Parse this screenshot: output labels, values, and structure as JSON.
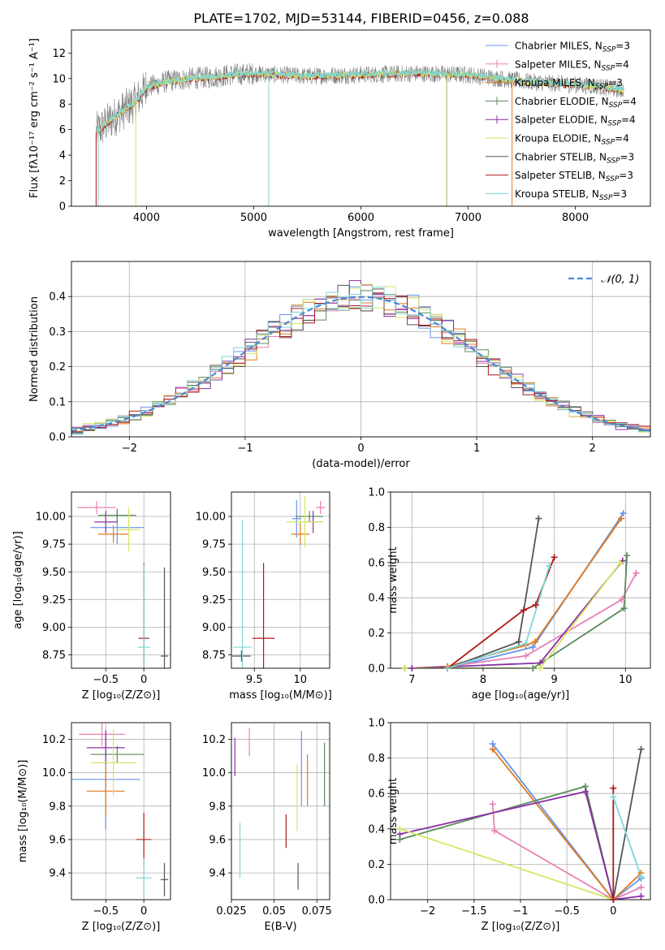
{
  "figure_title": "PLATE=1702, MJD=53144, FIBERID=0456, z=0.088",
  "colors": {
    "chabrier_miles": "#6495ed",
    "salpeter_miles": "#e780b4",
    "kroupa_miles": "#e07a1f",
    "chabrier_elodie": "#5b8a5b",
    "salpeter_elodie": "#8b2fa6",
    "kroupa_elodie": "#d4e660",
    "chabrier_stelib": "#555555",
    "salpeter_stelib": "#b01818",
    "kroupa_stelib": "#7dd6d6",
    "normal_curve": "#4a86d4"
  },
  "chart_data": [
    {
      "id": "spectrum",
      "type": "line",
      "title": "PLATE=1702, MJD=53144, FIBERID=0456, z=0.088",
      "xlabel": "wavelength [Angstrom, rest frame]",
      "ylabel": "Flux [fλ10⁻¹⁷ erg cm⁻² s⁻¹ A⁻¹]",
      "xlim": [
        3300,
        8700
      ],
      "ylim": [
        0,
        13.8
      ],
      "xticks": [
        4000,
        5000,
        6000,
        7000,
        8000
      ],
      "yticks": [
        0,
        2,
        4,
        6,
        8,
        10,
        12
      ],
      "grid": false,
      "legend_position": "top-right",
      "legend": [
        {
          "label": "Chabrier MILES, N_SSP=3",
          "color_key": "chabrier_miles"
        },
        {
          "label": "Salpeter MILES, N_SSP=4",
          "color_key": "salpeter_miles"
        },
        {
          "label": "Kroupa MILES, N_SSP=3",
          "color_key": "kroupa_miles"
        },
        {
          "label": "Chabrier ELODIE, N_SSP=4",
          "color_key": "chabrier_elodie"
        },
        {
          "label": "Salpeter ELODIE, N_SSP=4",
          "color_key": "salpeter_elodie"
        },
        {
          "label": "Kroupa ELODIE, N_SSP=4",
          "color_key": "kroupa_elodie"
        },
        {
          "label": "Chabrier STELIB, N_SSP=3",
          "color_key": "chabrier_stelib"
        },
        {
          "label": "Salpeter STELIB, N_SSP=3",
          "color_key": "salpeter_stelib"
        },
        {
          "label": "Kroupa STELIB, N_SSP=3",
          "color_key": "kroupa_stelib"
        }
      ],
      "continuum": {
        "x": [
          3530,
          3600,
          3700,
          3800,
          3900,
          4000,
          4200,
          4400,
          4600,
          4800,
          5000,
          5200,
          5500,
          6000,
          6500,
          7000,
          7300,
          7500,
          8000,
          8200,
          8450
        ],
        "y": [
          5.8,
          6.3,
          7.0,
          7.6,
          8.2,
          9.3,
          9.8,
          10.0,
          10.1,
          10.3,
          10.4,
          10.3,
          10.2,
          10.3,
          10.4,
          10.3,
          10.0,
          9.8,
          9.5,
          9.4,
          9.1
        ]
      },
      "spikes": [
        {
          "x": 3530,
          "y": 0
        },
        {
          "x": 3550,
          "y": 0
        },
        {
          "x": 3900,
          "y": 0
        },
        {
          "x": 5140,
          "y": 0
        },
        {
          "x": 6800,
          "y": 0
        },
        {
          "x": 7410,
          "y": 0
        }
      ]
    },
    {
      "id": "residuals",
      "type": "line",
      "xlabel": "(data-model)/error",
      "ylabel": "Normed distribution",
      "xlim": [
        -2.5,
        2.5
      ],
      "ylim": [
        0,
        0.5
      ],
      "xticks": [
        -2,
        -1,
        0,
        1,
        2
      ],
      "yticks": [
        0.0,
        0.1,
        0.2,
        0.3,
        0.4
      ],
      "grid": true,
      "legend_position": "top-right",
      "legend": [
        {
          "label": "𝒩(0, 1)",
          "color_key": "normal_curve",
          "style": "dashed"
        }
      ],
      "bin_width": 0.1
    },
    {
      "id": "age_vs_Z",
      "type": "scatter",
      "xlabel": "Z [log₁₀(Z/Z⊙)]",
      "ylabel": "age  [log₁₀(age/yr)]",
      "xlim": [
        -0.95,
        0.35
      ],
      "ylim": [
        8.63,
        10.22
      ],
      "xticks": [
        -0.5,
        0.0
      ],
      "yticks": [
        8.75,
        9.0,
        9.25,
        9.5,
        9.75,
        10.0
      ],
      "grid": true,
      "points": [
        {
          "key": "salpeter_miles",
          "x": -0.62,
          "y": 10.08,
          "xerr": 0.25,
          "yerr": 0.06
        },
        {
          "key": "chabrier_miles",
          "x": -0.35,
          "y": 9.9,
          "xerr": 0.35,
          "yerr": 0.15
        },
        {
          "key": "kroupa_miles",
          "x": -0.4,
          "y": 9.84,
          "xerr": 0.2,
          "yerr": 0.08
        },
        {
          "key": "chabrier_elodie",
          "x": -0.35,
          "y": 10.01,
          "xerr": 0.25,
          "yerr": 0.06
        },
        {
          "key": "salpeter_elodie",
          "x": -0.5,
          "y": 9.95,
          "xerr": 0.15,
          "yerr": 0.1
        },
        {
          "key": "kroupa_elodie",
          "x": -0.2,
          "y": 9.88,
          "xerr": 0.15,
          "yerr": 0.2
        },
        {
          "key": "chabrier_stelib",
          "x": 0.27,
          "y": 8.74,
          "xerr": 0.05,
          "yerr": 0.8
        },
        {
          "key": "salpeter_stelib",
          "x": 0.0,
          "y": 8.9,
          "xerr": 0.07,
          "yerr": 0.68
        },
        {
          "key": "kroupa_stelib",
          "x": 0.0,
          "y": 8.82,
          "xerr": 0.08,
          "yerr": 0.75
        }
      ]
    },
    {
      "id": "age_vs_mass",
      "type": "scatter",
      "xlabel": "mass [log₁₀(M/M⊙)]",
      "ylabel": "",
      "xlim": [
        9.25,
        10.32
      ],
      "ylim": [
        8.63,
        10.22
      ],
      "xticks": [
        9.5,
        10.0
      ],
      "yticks": [
        8.75,
        9.0,
        9.25,
        9.5,
        9.75,
        10.0
      ],
      "grid": true,
      "points": [
        {
          "key": "salpeter_miles",
          "x": 10.22,
          "y": 10.08,
          "xerr": 0.05,
          "yerr": 0.06
        },
        {
          "key": "chabrier_miles",
          "x": 9.96,
          "y": 9.98,
          "xerr": 0.05,
          "yerr": 0.17
        },
        {
          "key": "kroupa_miles",
          "x": 10.0,
          "y": 9.84,
          "xerr": 0.1,
          "yerr": 0.1
        },
        {
          "key": "chabrier_elodie",
          "x": 10.1,
          "y": 10.0,
          "xerr": 0.15,
          "yerr": 0.05
        },
        {
          "key": "salpeter_elodie",
          "x": 10.14,
          "y": 9.95,
          "xerr": 0.1,
          "yerr": 0.1
        },
        {
          "key": "kroupa_elodie",
          "x": 10.05,
          "y": 9.95,
          "xerr": 0.2,
          "yerr": 0.23
        },
        {
          "key": "chabrier_stelib",
          "x": 9.36,
          "y": 8.74,
          "xerr": 0.1,
          "yerr": 0.05
        },
        {
          "key": "salpeter_stelib",
          "x": 9.6,
          "y": 8.9,
          "xerr": 0.12,
          "yerr": 0.68
        },
        {
          "key": "kroupa_stelib",
          "x": 9.37,
          "y": 8.82,
          "xerr": 0.1,
          "yerr": 1.15
        }
      ]
    },
    {
      "id": "weight_vs_age",
      "type": "line",
      "xlabel": "age  [log₁₀(age/yr)]",
      "ylabel": "mass weight",
      "xlim": [
        6.7,
        10.35
      ],
      "ylim": [
        0,
        1.0
      ],
      "xticks": [
        7,
        8,
        9,
        10
      ],
      "yticks": [
        0.0,
        0.2,
        0.4,
        0.6,
        0.8,
        1.0
      ],
      "grid": true,
      "series": [
        {
          "key": "chabrier_miles",
          "x": [
            6.9,
            7.5,
            8.7,
            9.97
          ],
          "y": [
            0.0,
            0.0,
            0.12,
            0.88
          ]
        },
        {
          "key": "salpeter_miles",
          "x": [
            7.0,
            7.5,
            8.6,
            9.95,
            10.15
          ],
          "y": [
            0.0,
            0.01,
            0.07,
            0.39,
            0.54
          ]
        },
        {
          "key": "kroupa_miles",
          "x": [
            7.0,
            7.5,
            8.6,
            8.73,
            9.94
          ],
          "y": [
            0.0,
            0.01,
            0.13,
            0.15,
            0.85
          ]
        },
        {
          "key": "chabrier_elodie",
          "x": [
            6.9,
            8.7,
            9.98,
            10.02
          ],
          "y": [
            0.0,
            0.0,
            0.34,
            0.64
          ]
        },
        {
          "key": "salpeter_elodie",
          "x": [
            7.0,
            8.8,
            9.96
          ],
          "y": [
            0.0,
            0.03,
            0.61
          ]
        },
        {
          "key": "kroupa_elodie",
          "x": [
            6.9,
            8.8,
            9.93
          ],
          "y": [
            0.0,
            0.0,
            0.6
          ]
        },
        {
          "key": "chabrier_stelib",
          "x": [
            7.5,
            8.5,
            8.78
          ],
          "y": [
            0.0,
            0.15,
            0.85
          ]
        },
        {
          "key": "salpeter_stelib",
          "x": [
            7.5,
            8.57,
            8.74,
            9.0
          ],
          "y": [
            0.0,
            0.33,
            0.36,
            0.63
          ]
        },
        {
          "key": "kroupa_stelib",
          "x": [
            7.5,
            8.6,
            8.93
          ],
          "y": [
            0.0,
            0.14,
            0.58
          ]
        }
      ]
    },
    {
      "id": "mass_vs_Z",
      "type": "scatter",
      "xlabel": "Z [log₁₀(Z/Z⊙)]",
      "ylabel": "mass [log₁₀(M/M⊙)]",
      "xlim": [
        -0.95,
        0.35
      ],
      "ylim": [
        9.24,
        10.3
      ],
      "xticks": [
        -0.5,
        0.0
      ],
      "yticks": [
        9.4,
        9.6,
        9.8,
        10.0,
        10.2
      ],
      "grid": true,
      "points": [
        {
          "key": "salpeter_miles",
          "x": -0.55,
          "y": 10.23,
          "xerr": 0.3,
          "yerr": 0.07
        },
        {
          "key": "chabrier_miles",
          "x": -0.5,
          "y": 9.96,
          "xerr": 0.45,
          "yerr": 0.3
        },
        {
          "key": "kroupa_miles",
          "x": -0.5,
          "y": 9.89,
          "xerr": 0.25,
          "yerr": 0.15
        },
        {
          "key": "chabrier_elodie",
          "x": -0.35,
          "y": 10.11,
          "xerr": 0.35,
          "yerr": 0.05
        },
        {
          "key": "salpeter_elodie",
          "x": -0.5,
          "y": 10.15,
          "xerr": 0.25,
          "yerr": 0.1
        },
        {
          "key": "kroupa_elodie",
          "x": -0.4,
          "y": 10.06,
          "xerr": 0.3,
          "yerr": 0.2
        },
        {
          "key": "chabrier_stelib",
          "x": 0.27,
          "y": 9.36,
          "xerr": 0.05,
          "yerr": 0.1
        },
        {
          "key": "salpeter_stelib",
          "x": 0.0,
          "y": 9.6,
          "xerr": 0.1,
          "yerr": 0.16
        },
        {
          "key": "kroupa_stelib",
          "x": 0.0,
          "y": 9.37,
          "xerr": 0.1,
          "yerr": 0.12
        }
      ]
    },
    {
      "id": "mass_vs_EBV",
      "type": "scatter",
      "xlabel": "E(B-V)",
      "ylabel": "",
      "xlim": [
        0.025,
        0.0825
      ],
      "ylim": [
        9.24,
        10.3
      ],
      "xticks": [
        0.025,
        0.05,
        0.075
      ],
      "yticks": [
        9.4,
        9.6,
        9.8,
        10.0,
        10.2
      ],
      "grid": true,
      "bars": [
        {
          "key": "salpeter_elodie",
          "x": 0.027,
          "y0": 9.98,
          "y1": 10.21
        },
        {
          "key": "kroupa_stelib",
          "x": 0.03,
          "y0": 9.37,
          "y1": 9.7
        },
        {
          "key": "salpeter_miles",
          "x": 0.0355,
          "y0": 10.1,
          "y1": 10.27
        },
        {
          "key": "salpeter_stelib",
          "x": 0.057,
          "y0": 9.55,
          "y1": 9.75
        },
        {
          "key": "kroupa_elodie",
          "x": 0.0635,
          "y0": 9.65,
          "y1": 10.05
        },
        {
          "key": "chabrier_stelib",
          "x": 0.064,
          "y0": 9.3,
          "y1": 9.46
        },
        {
          "key": "chabrier_miles",
          "x": 0.066,
          "y0": 9.8,
          "y1": 10.25
        },
        {
          "key": "kroupa_miles",
          "x": 0.0695,
          "y0": 9.8,
          "y1": 10.11
        },
        {
          "key": "chabrier_elodie",
          "x": 0.0795,
          "y0": 9.8,
          "y1": 10.18
        }
      ]
    },
    {
      "id": "weight_vs_Z",
      "type": "line",
      "xlabel": "Z [log₁₀(Z/Z⊙)]",
      "ylabel": "mass weight",
      "xlim": [
        -2.4,
        0.4
      ],
      "ylim": [
        0,
        1.0
      ],
      "xticks": [
        -2.0,
        -1.5,
        -1.0,
        -0.5,
        0.0
      ],
      "yticks": [
        0.0,
        0.2,
        0.4,
        0.6,
        0.8,
        1.0
      ],
      "grid": true,
      "series": [
        {
          "key": "chabrier_miles",
          "x": [
            -1.3,
            0.0,
            0.3
          ],
          "y": [
            0.88,
            0.0,
            0.12
          ]
        },
        {
          "key": "salpeter_miles",
          "x": [
            -1.3,
            -1.28,
            0.0,
            0.3
          ],
          "y": [
            0.54,
            0.39,
            0.0,
            0.07
          ]
        },
        {
          "key": "kroupa_miles",
          "x": [
            -1.3,
            0.0,
            0.3
          ],
          "y": [
            0.85,
            0.0,
            0.15
          ]
        },
        {
          "key": "chabrier_elodie",
          "x": [
            -2.3,
            -0.3,
            0.0
          ],
          "y": [
            0.34,
            0.64,
            0.0
          ]
        },
        {
          "key": "salpeter_elodie",
          "x": [
            -2.3,
            -0.3,
            0.0,
            0.3
          ],
          "y": [
            0.37,
            0.61,
            0.0,
            0.02
          ]
        },
        {
          "key": "kroupa_elodie",
          "x": [
            -2.3,
            0.0
          ],
          "y": [
            0.4,
            0.0
          ]
        },
        {
          "key": "chabrier_stelib",
          "x": [
            0.0,
            0.3
          ],
          "y": [
            0.0,
            0.85
          ]
        },
        {
          "key": "salpeter_stelib",
          "x": [
            0.0,
            0.0
          ],
          "y": [
            0.0,
            0.63
          ]
        },
        {
          "key": "kroupa_stelib",
          "x": [
            0.0,
            0.3
          ],
          "y": [
            0.58,
            0.13
          ]
        }
      ]
    }
  ]
}
